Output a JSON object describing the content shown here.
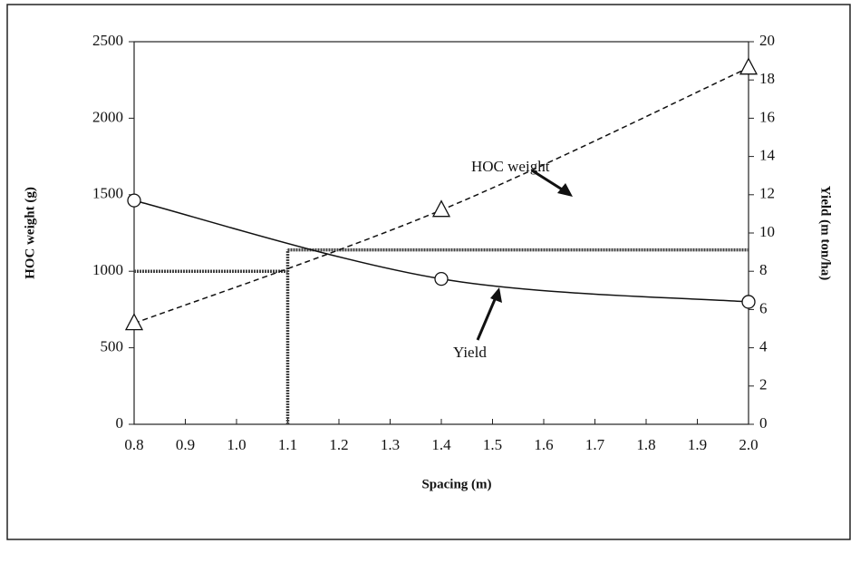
{
  "chart_data": {
    "type": "line",
    "x_label": "Spacing (m)",
    "y_label": "HOC weight (g)",
    "y2_label": "Yield (m ton/ha)",
    "xlim": [
      0.8,
      2.0
    ],
    "xticks": [
      0.8,
      0.9,
      {
        "value": 1,
        "label": "1.0"
      },
      1.1,
      1.2,
      1.3,
      1.4,
      1.5,
      1.6,
      1.7,
      1.8,
      1.9,
      {
        "value": 2,
        "label": "2.0"
      }
    ],
    "ylim": [
      0,
      2500
    ],
    "yticks": [
      0,
      500,
      1000,
      1500,
      2000,
      2500
    ],
    "y2lim": [
      0,
      20
    ],
    "y2ticks": [
      0,
      2,
      4,
      6,
      8,
      10,
      12,
      14,
      16,
      18,
      20
    ],
    "series": [
      {
        "name": "HOC weight",
        "color": "#111",
        "marker": "triangle",
        "dashed": true,
        "x": [
          0.8,
          1.4,
          2.0
        ],
        "values": [
          660,
          1400,
          2330
        ]
      },
      {
        "name": "Yield",
        "color": "#111",
        "marker": "circle",
        "dashed": false,
        "axis": "y2",
        "x": [
          0.8,
          1.4,
          2.0
        ],
        "values": [
          11.7,
          7.6,
          6.4
        ]
      }
    ],
    "reference_lines": [
      {
        "x": [
          0.8,
          1.1
        ],
        "values": [
          1000,
          1000
        ]
      },
      {
        "x": [
          1.1,
          1.1
        ],
        "values": [
          0,
          1140
        ]
      },
      {
        "x": [
          1.1,
          2.0
        ],
        "values": [
          1140,
          1140
        ]
      }
    ]
  }
}
